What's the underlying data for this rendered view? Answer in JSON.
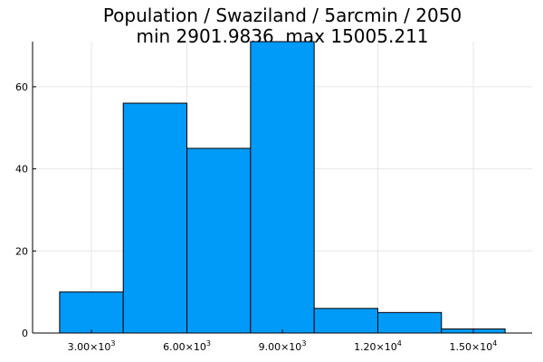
{
  "chart_data": {
    "type": "bar",
    "title": "Population / Swaziland / 5arcmin / 2050",
    "subtitle": "min 2901.9836  max 15005.211",
    "xlabel": "",
    "ylabel": "",
    "bins": [
      {
        "x0": 2000,
        "x1": 4000,
        "count": 10
      },
      {
        "x0": 4000,
        "x1": 6000,
        "count": 56
      },
      {
        "x0": 6000,
        "x1": 8000,
        "count": 45
      },
      {
        "x0": 8000,
        "x1": 10000,
        "count": 71
      },
      {
        "x0": 10000,
        "x1": 12000,
        "count": 6
      },
      {
        "x0": 12000,
        "x1": 14000,
        "count": 5
      },
      {
        "x0": 14000,
        "x1": 16000,
        "count": 1
      }
    ],
    "xlim": [
      1150,
      16850
    ],
    "ylim": [
      0,
      71
    ],
    "x_ticks": [
      {
        "value": 3000,
        "mantissa": "3.00",
        "times": "×10",
        "exp": "3"
      },
      {
        "value": 6000,
        "mantissa": "6.00",
        "times": "×10",
        "exp": "3"
      },
      {
        "value": 9000,
        "mantissa": "9.00",
        "times": "×10",
        "exp": "3"
      },
      {
        "value": 12000,
        "mantissa": "1.20",
        "times": "×10",
        "exp": "4"
      },
      {
        "value": 15000,
        "mantissa": "1.50",
        "times": "×10",
        "exp": "4"
      }
    ],
    "y_ticks": [
      0,
      20,
      40,
      60
    ],
    "grid": true,
    "legend": false,
    "bar_color": "#009af9"
  }
}
